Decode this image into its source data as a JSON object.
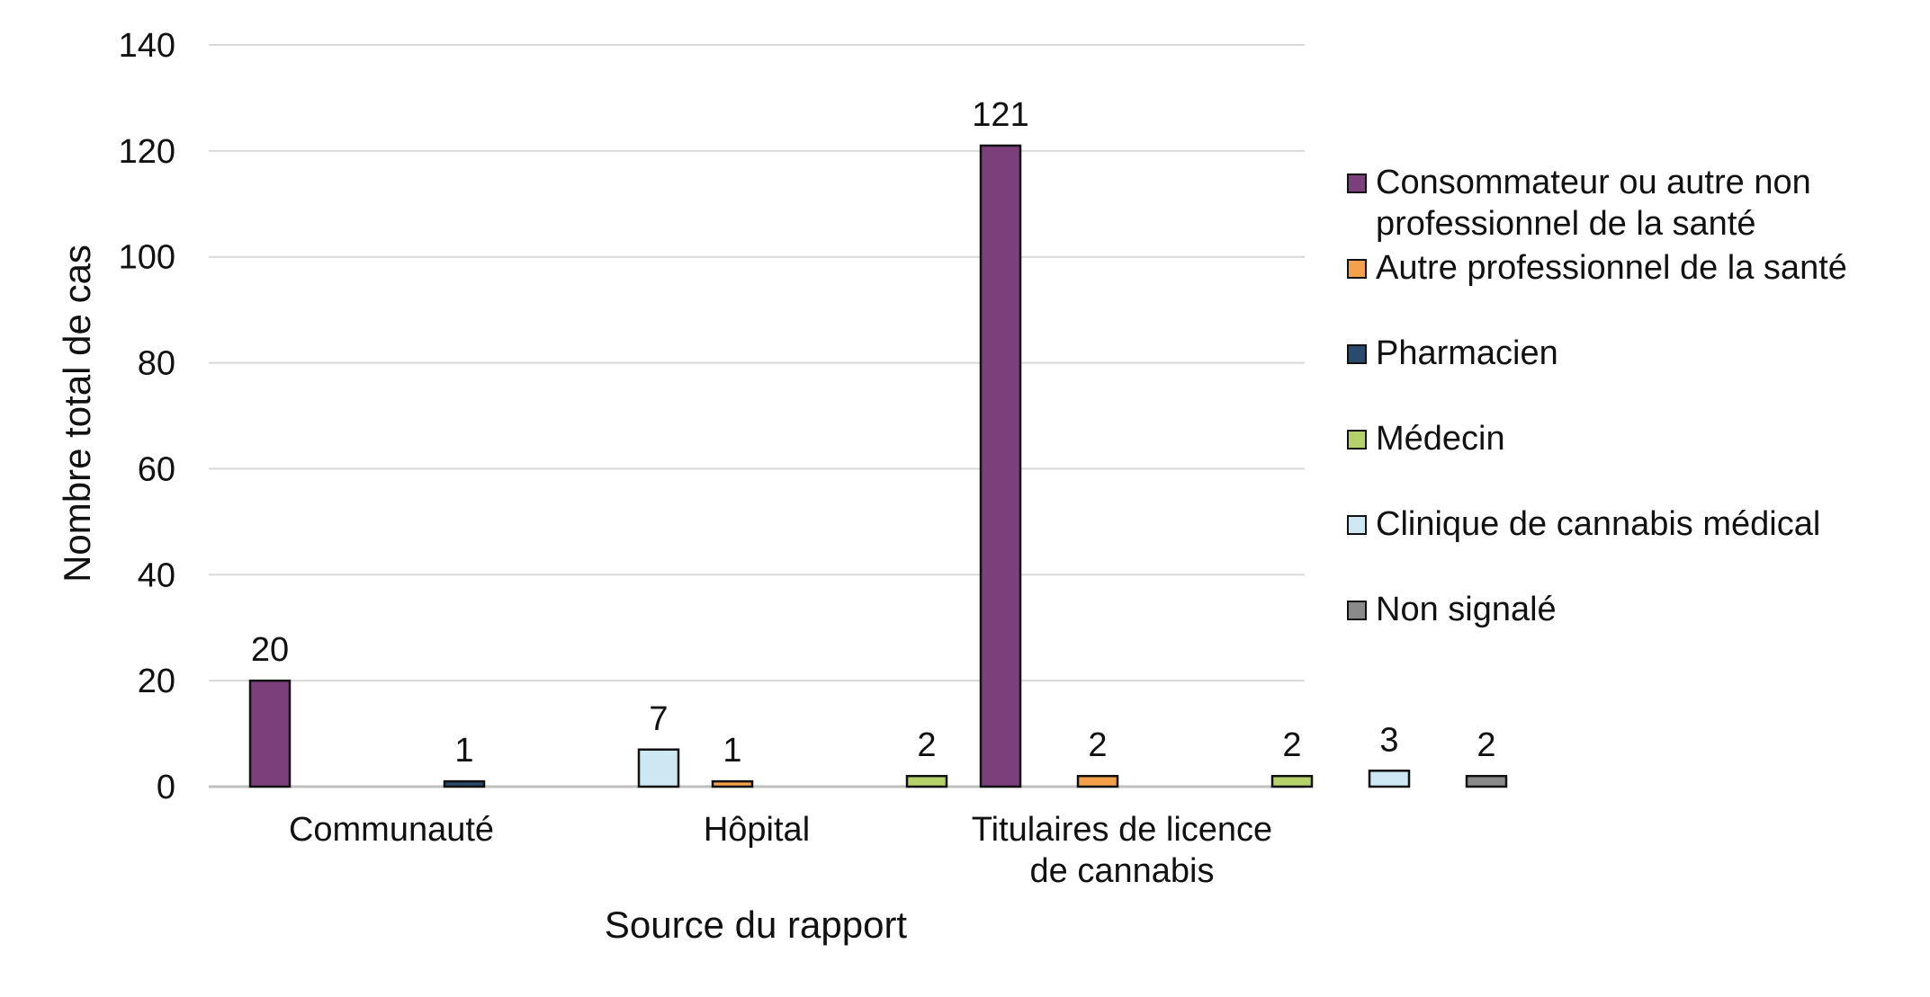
{
  "chart_data": {
    "type": "bar",
    "xlabel": "Source du rapport",
    "ylabel": "Nombre total de cas",
    "ylim": [
      0,
      140
    ],
    "yticks": [
      0,
      20,
      40,
      60,
      80,
      100,
      120,
      140
    ],
    "grid": true,
    "legend_position": "right",
    "categories": [
      [
        "Communauté"
      ],
      [
        "Hôpital"
      ],
      [
        "Titulaires de licence",
        "de cannabis"
      ]
    ],
    "series": [
      {
        "name": "Consommateur ou autre non professionnel de la santé",
        "color": "#7B3F7C",
        "values": [
          20,
          null,
          121
        ]
      },
      {
        "name": "Autre professionnel de la santé",
        "color": "#F5A04A",
        "values": [
          null,
          1,
          2
        ]
      },
      {
        "name": "Pharmacien",
        "color": "#2A4A6E",
        "values": [
          1,
          null,
          null
        ]
      },
      {
        "name": "Médecin",
        "color": "#B5D16A",
        "values": [
          null,
          2,
          2
        ]
      },
      {
        "name": "Clinique de cannabis médical",
        "color": "#CDE8F2",
        "values": [
          7,
          null,
          3
        ]
      },
      {
        "name": "Non signalé",
        "color": "#8A8A8A",
        "values": [
          null,
          null,
          2
        ]
      }
    ]
  }
}
